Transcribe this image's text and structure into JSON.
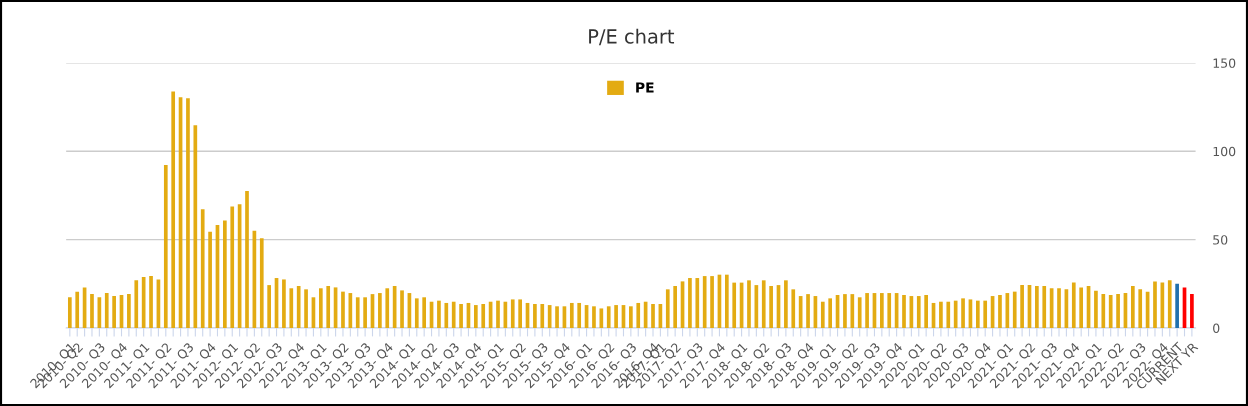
{
  "chart_data": {
    "type": "bar",
    "title": "P/E chart",
    "legend": "top",
    "categories": [
      "2010- Q1",
      "2010- Q2",
      null,
      null,
      "2010- Q3",
      null,
      null,
      "2010- Q4",
      null,
      null,
      "2011- Q1",
      null,
      null,
      "2011- Q2",
      null,
      null,
      "2011- Q3",
      null,
      null,
      "2011- Q4",
      null,
      null,
      "2012- Q1",
      null,
      null,
      "2012- Q2",
      null,
      null,
      "2012- Q3",
      null,
      null,
      "2012- Q4",
      null,
      null,
      "2013- Q1",
      null,
      null,
      "2013- Q2",
      null,
      null,
      "2013- Q3",
      null,
      null,
      "2013- Q4",
      null,
      null,
      "2014- Q1",
      null,
      null,
      "2014- Q2",
      null,
      null,
      "2014- Q3",
      null,
      null,
      "2014- Q4",
      null,
      null,
      "2015- Q1",
      null,
      null,
      "2015- Q2",
      null,
      null,
      "2015- Q3",
      null,
      null,
      "2015- Q4",
      null,
      null,
      "2016- Q1",
      null,
      null,
      "2016- Q2",
      null,
      null,
      "2016- Q3",
      null,
      null,
      "2016- Q4",
      "2017- Q1",
      null,
      "2017- Q2",
      null,
      null,
      "2017- Q3",
      null,
      null,
      "2017- Q4",
      null,
      null,
      "2018- Q1",
      null,
      null,
      "2018- Q2",
      null,
      null,
      "2018- Q3",
      null,
      null,
      "2018- Q4",
      null,
      null,
      "2019- Q1",
      null,
      null,
      "2019- Q2",
      null,
      null,
      "2019- Q3",
      null,
      null,
      "2019- Q4",
      null,
      null,
      "2020- Q1",
      null,
      null,
      "2020- Q2",
      null,
      null,
      "2020- Q3",
      null,
      null,
      "2020- Q4",
      null,
      null,
      "2021- Q1",
      null,
      null,
      "2021- Q2",
      null,
      null,
      "2021- Q3",
      null,
      null,
      "2021- Q4",
      null,
      null,
      "2022- Q1",
      null,
      null,
      "2022- Q2",
      null,
      null,
      "2022- Q3",
      null,
      null,
      "2022- Q4",
      null,
      "CURRENT",
      null,
      "NEXT YR"
    ],
    "series": [
      {
        "name": "PE",
        "color": "#e3ab12",
        "colors": [
          "#e3ab12",
          "#e3ab12",
          "#e3ab12",
          "#e3ab12",
          "#e3ab12",
          "#e3ab12",
          "#e3ab12",
          "#e3ab12",
          "#e3ab12",
          "#e3ab12",
          "#e3ab12",
          "#e3ab12",
          "#e3ab12",
          "#e3ab12",
          "#e3ab12",
          "#e3ab12",
          "#e3ab12",
          "#e3ab12",
          "#e3ab12",
          "#e3ab12",
          "#e3ab12",
          "#e3ab12",
          "#e3ab12",
          "#e3ab12",
          "#e3ab12",
          "#e3ab12",
          "#e3ab12",
          "#e3ab12",
          "#e3ab12",
          "#e3ab12",
          "#e3ab12",
          "#e3ab12",
          "#e3ab12",
          "#e3ab12",
          "#e3ab12",
          "#e3ab12",
          "#e3ab12",
          "#e3ab12",
          "#e3ab12",
          "#e3ab12",
          "#e3ab12",
          "#e3ab12",
          "#e3ab12",
          "#e3ab12",
          "#e3ab12",
          "#e3ab12",
          "#e3ab12",
          "#e3ab12",
          "#e3ab12",
          "#e3ab12",
          "#e3ab12",
          "#e3ab12",
          "#e3ab12",
          "#e3ab12",
          "#e3ab12",
          "#e3ab12",
          "#e3ab12",
          "#e3ab12",
          "#e3ab12",
          "#e3ab12",
          "#e3ab12",
          "#e3ab12",
          "#e3ab12",
          "#e3ab12",
          "#e3ab12",
          "#e3ab12",
          "#e3ab12",
          "#e3ab12",
          "#e3ab12",
          "#e3ab12",
          "#e3ab12",
          "#e3ab12",
          "#e3ab12",
          "#e3ab12",
          "#e3ab12",
          "#e3ab12",
          "#e3ab12",
          "#e3ab12",
          "#e3ab12",
          "#e3ab12",
          "#e3ab12",
          "#e3ab12",
          "#e3ab12",
          "#e3ab12",
          "#e3ab12",
          "#e3ab12",
          "#e3ab12",
          "#e3ab12",
          "#e3ab12",
          "#e3ab12",
          "#e3ab12",
          "#e3ab12",
          "#e3ab12",
          "#e3ab12",
          "#e3ab12",
          "#e3ab12",
          "#e3ab12",
          "#e3ab12",
          "#e3ab12",
          "#e3ab12",
          "#e3ab12",
          "#e3ab12",
          "#e3ab12",
          "#e3ab12",
          "#e3ab12",
          "#e3ab12",
          "#e3ab12",
          "#e3ab12",
          "#e3ab12",
          "#e3ab12",
          "#e3ab12",
          "#e3ab12",
          "#e3ab12",
          "#e3ab12",
          "#e3ab12",
          "#e3ab12",
          "#e3ab12",
          "#e3ab12",
          "#e3ab12",
          "#e3ab12",
          "#e3ab12",
          "#e3ab12",
          "#e3ab12",
          "#e3ab12",
          "#e3ab12",
          "#e3ab12",
          "#e3ab12",
          "#e3ab12",
          "#e3ab12",
          "#e3ab12",
          "#e3ab12",
          "#e3ab12",
          "#e3ab12",
          "#e3ab12",
          "#e3ab12",
          "#e3ab12",
          "#e3ab12",
          "#e3ab12",
          "#e3ab12",
          "#e3ab12",
          "#e3ab12",
          "#e3ab12",
          "#e3ab12",
          "#e3ab12",
          "#e3ab12",
          "#e3ab12",
          "#e3ab12",
          "#e3ab12",
          "#e3ab12",
          "#e3ab12",
          "#1f6fad",
          "#ff0000",
          "#ff0000"
        ],
        "values": [
          17.4,
          20.6,
          23,
          19.2,
          17.4,
          19.8,
          18.1,
          18.7,
          19.2,
          27,
          28.9,
          29.4,
          27.5,
          92.3,
          133.8,
          130.6,
          130,
          114.7,
          67.2,
          54.5,
          58.3,
          60.9,
          68.7,
          70,
          77.5,
          55.1,
          50.8,
          24.3,
          28.3,
          27.5,
          22.5,
          23.8,
          21.9,
          17.4,
          22.5,
          23.8,
          23,
          20.6,
          19.8,
          17.4,
          17.4,
          19.2,
          19.8,
          22.5,
          23.8,
          21.3,
          19.8,
          16.8,
          17.4,
          14.9,
          15.5,
          14.2,
          14.9,
          13.6,
          14.2,
          13,
          13.6,
          14.9,
          15.5,
          14.9,
          16.2,
          16.2,
          14.2,
          13.6,
          13.6,
          13,
          12.3,
          12.3,
          14.2,
          14.2,
          13,
          12.3,
          11.1,
          12.3,
          13,
          13,
          12.3,
          14.2,
          14.9,
          13.6,
          13.6,
          21.9,
          23.8,
          26.4,
          28.3,
          28.3,
          29.4,
          29.4,
          30.2,
          30.2,
          25.7,
          25.7,
          27,
          24.3,
          27,
          23.8,
          24.3,
          27,
          21.9,
          18.1,
          19.2,
          18.1,
          14.9,
          16.8,
          18.7,
          19.2,
          19.2,
          17.4,
          19.8,
          19.8,
          19.8,
          19.8,
          19.8,
          18.7,
          18.1,
          18.1,
          18.7,
          14.2,
          14.9,
          14.9,
          15.5,
          16.8,
          16.2,
          15.5,
          15.5,
          18.1,
          18.7,
          19.8,
          20.6,
          24.3,
          24.3,
          23.8,
          23.8,
          22.5,
          22.5,
          21.9,
          25.7,
          23,
          23.8,
          21.1,
          19.2,
          18.7,
          19.2,
          19.8,
          23.8,
          21.9,
          20.6,
          26.4,
          25.7,
          27,
          25.1,
          23,
          19.2
        ]
      }
    ],
    "ylim": [
      0,
      150
    ],
    "yticks": [
      0,
      50,
      100,
      150
    ],
    "grid": "y"
  }
}
